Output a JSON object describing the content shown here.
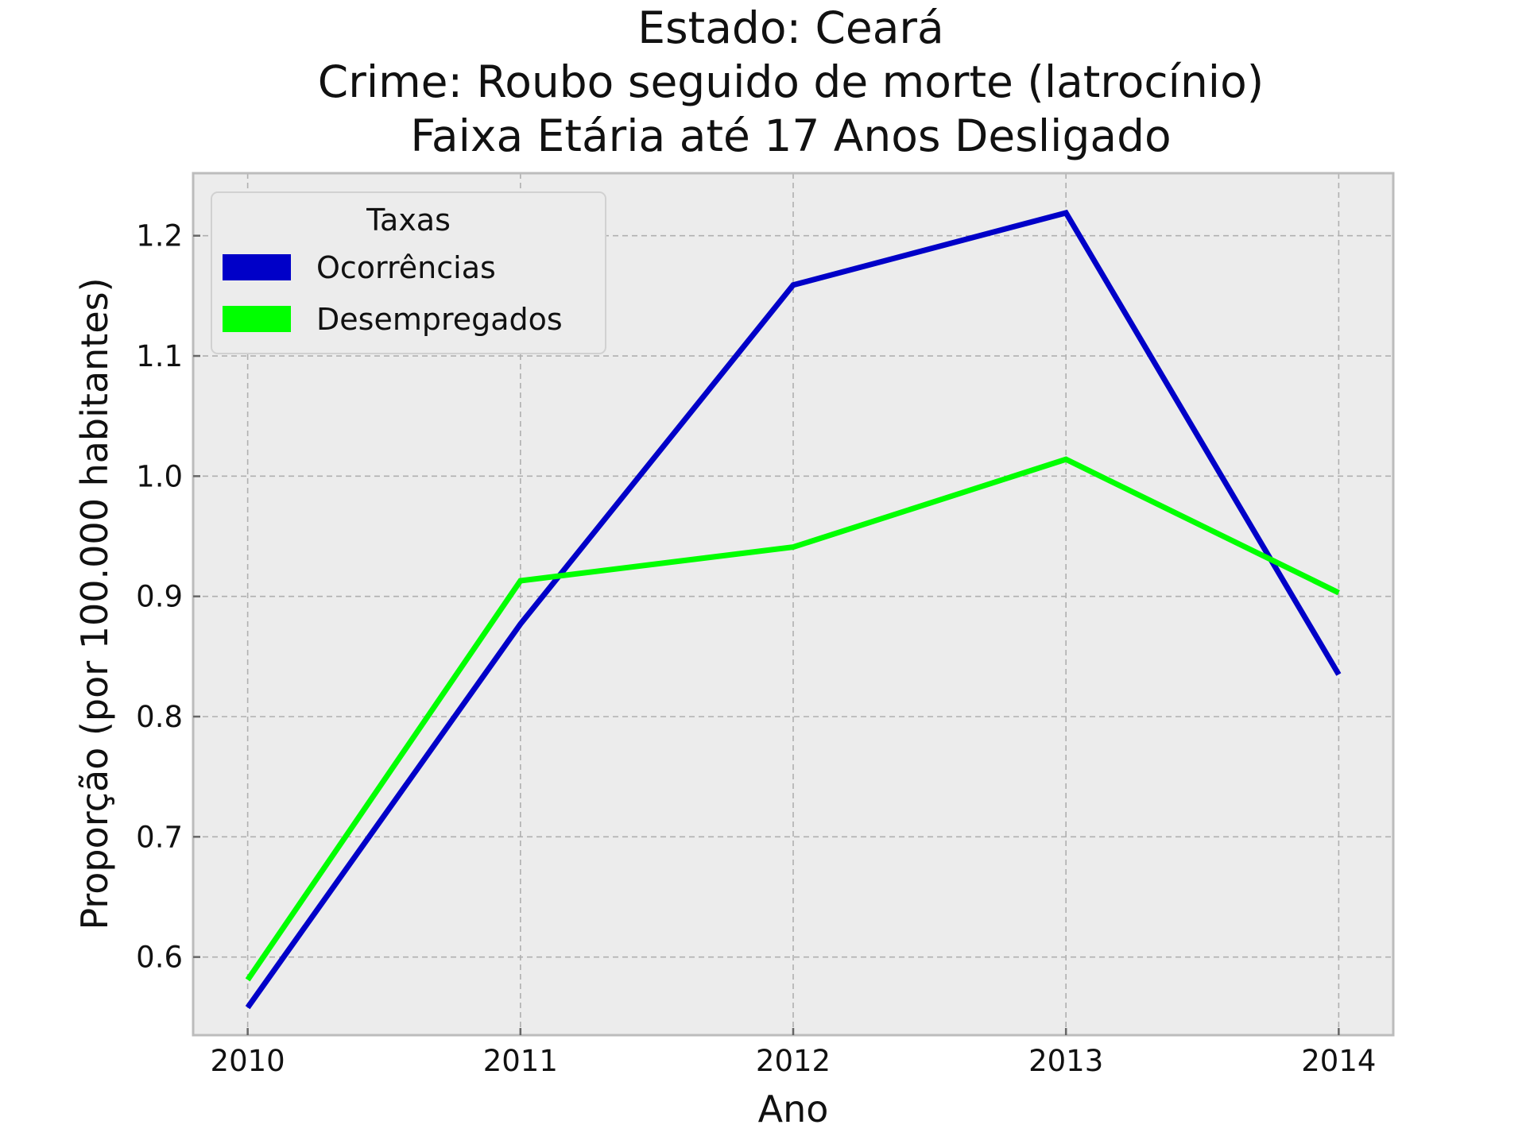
{
  "chart_data": {
    "type": "line",
    "title_lines": [
      "Estado: Ceará",
      "Crime: Roubo seguido de morte (latrocínio)",
      "Faixa Etária até 17 Anos   Desligado"
    ],
    "xlabel": "Ano",
    "ylabel": "Proporção (por 100.000 habitantes)",
    "x": [
      2010,
      2011,
      2012,
      2013,
      2014
    ],
    "x_tick_labels": [
      "2010",
      "2011",
      "2012",
      "2013",
      "2014"
    ],
    "y_ticks": [
      0.6,
      0.7,
      0.8,
      0.9,
      1.0,
      1.1,
      1.2
    ],
    "y_tick_labels": [
      "0.6",
      "0.7",
      "0.8",
      "0.9",
      "1.0",
      "1.1",
      "1.2"
    ],
    "xlim": [
      2009.8,
      2014.2
    ],
    "ylim": [
      0.535,
      1.252
    ],
    "grid": true,
    "legend": {
      "title": "Taxas",
      "placement": "top-left"
    },
    "series": [
      {
        "name": "Ocorrências",
        "color": "#0000c8",
        "values": [
          0.558,
          0.877,
          1.159,
          1.219,
          0.835
        ]
      },
      {
        "name": "Desempregados",
        "color": "#00ff00",
        "values": [
          0.581,
          0.913,
          0.941,
          1.014,
          0.903
        ]
      }
    ]
  },
  "style": {
    "plot_background": "#ececec",
    "spine_color": "#bcbcbc",
    "grid_color": "#b0b0b0"
  }
}
